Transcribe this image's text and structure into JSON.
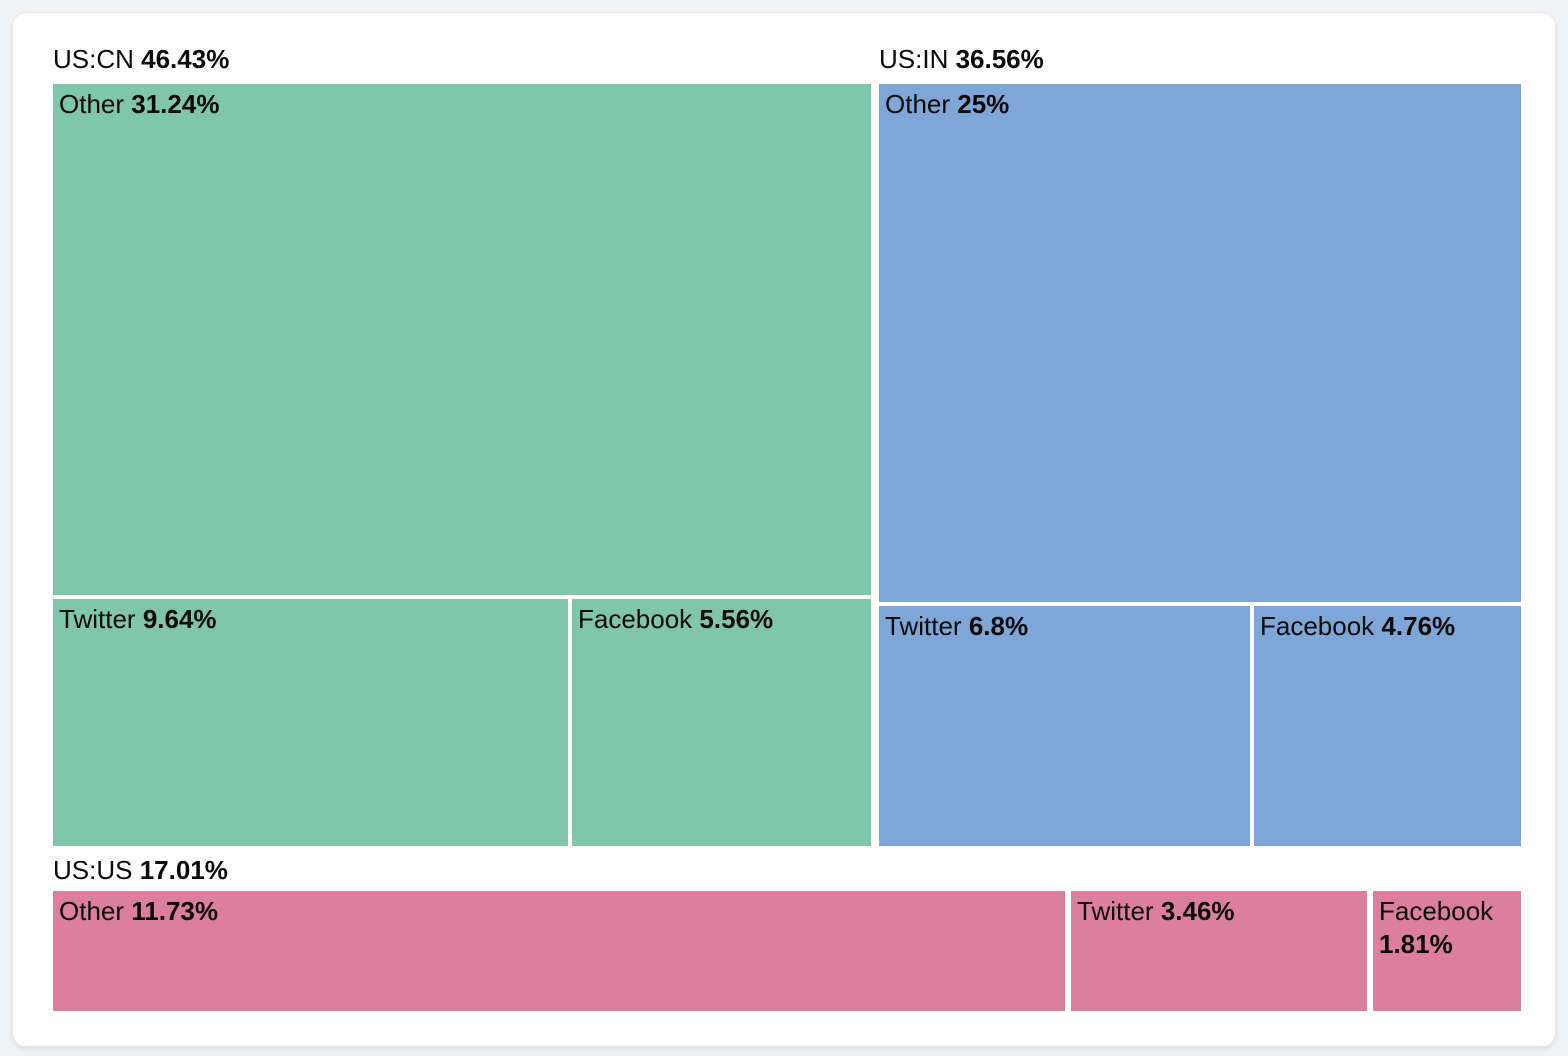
{
  "page": {
    "background_color": "#f1f2f4",
    "card_background_color": "#ffffff"
  },
  "chart_data": {
    "type": "treemap",
    "title": "",
    "legend": "none",
    "unit": "%",
    "groups": [
      {
        "label": "US:CN",
        "percent": "46.43%",
        "value": 46.43,
        "color": "#80c6ab",
        "children": [
          {
            "name": "Other",
            "percent": "31.24%",
            "value": 31.24
          },
          {
            "name": "Twitter",
            "percent": "9.64%",
            "value": 9.64
          },
          {
            "name": "Facebook",
            "percent": "5.56%",
            "value": 5.56
          }
        ]
      },
      {
        "label": "US:IN",
        "percent": "36.56%",
        "value": 36.56,
        "color": "#7ea7d8",
        "children": [
          {
            "name": "Other",
            "percent": "25%",
            "value": 25
          },
          {
            "name": "Twitter",
            "percent": "6.8%",
            "value": 6.8
          },
          {
            "name": "Facebook",
            "percent": "4.76%",
            "value": 4.76
          }
        ]
      },
      {
        "label": "US:US",
        "percent": "17.01%",
        "value": 17.01,
        "color": "#dc7f9e",
        "children": [
          {
            "name": "Other",
            "percent": "11.73%",
            "value": 11.73
          },
          {
            "name": "Twitter",
            "percent": "3.46%",
            "value": 3.46
          },
          {
            "name": "Facebook",
            "percent": "1.81%",
            "value": 1.81
          }
        ]
      }
    ]
  }
}
